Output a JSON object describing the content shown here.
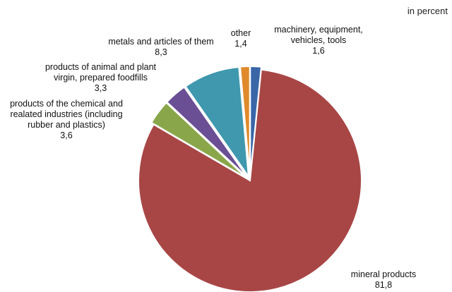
{
  "chart_data": {
    "type": "pie",
    "unit_note": "in percent",
    "slices": [
      {
        "label": "machinery, equipment, vehicles, tools",
        "value": 1.6,
        "display": "1,6",
        "color": "#3a66a8"
      },
      {
        "label": "mineral products",
        "value": 81.8,
        "display": "81,8",
        "color": "#a84646"
      },
      {
        "label": "products of the chemical and realated industries (including rubber and plastics)",
        "value": 3.6,
        "display": "3,6",
        "color": "#8aa64a"
      },
      {
        "label": "products of animal and plant virgin, prepared foodfills",
        "value": 3.3,
        "display": "3,3",
        "color": "#6a4f94"
      },
      {
        "label": "metals and articles of them",
        "value": 8.3,
        "display": "8,3",
        "color": "#3f98ae"
      },
      {
        "label": "other",
        "value": 1.4,
        "display": "1,4",
        "color": "#e08a2c"
      }
    ],
    "start_angle_deg": 0,
    "direction": "clockwise"
  }
}
